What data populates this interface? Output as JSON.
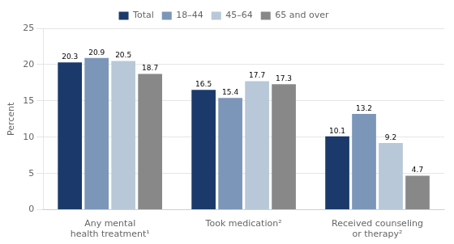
{
  "chart_data": {
    "type": "bar",
    "categories": [
      "Any mental\nhealth treatment¹",
      "Took medication²",
      "Received counseling\nor therapy²"
    ],
    "series": [
      {
        "name": "Total",
        "color": "#1b3a6b",
        "values": [
          20.3,
          16.5,
          10.1
        ]
      },
      {
        "name": "18–44",
        "color": "#7b96b8",
        "values": [
          20.9,
          15.4,
          13.2
        ]
      },
      {
        "name": "45–64",
        "color": "#b8c8d8",
        "values": [
          20.5,
          17.7,
          9.2
        ]
      },
      {
        "name": "65 and over",
        "color": "#888888",
        "values": [
          18.7,
          17.3,
          4.7
        ]
      }
    ],
    "ylabel": "Percent",
    "ylim": [
      0,
      25
    ],
    "yticks": [
      0,
      5,
      10,
      15,
      20,
      25
    ],
    "grid": true,
    "legend": "top",
    "data_labels": true
  }
}
